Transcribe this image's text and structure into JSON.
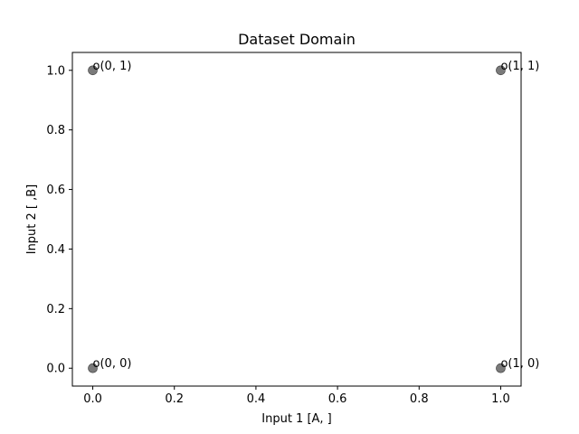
{
  "chart_data": {
    "type": "scatter",
    "title": "Dataset Domain",
    "xlabel": "Input 1 [A, ]",
    "ylabel": "Input 2 [ ,B]",
    "xlim": [
      -0.05,
      1.05
    ],
    "ylim": [
      -0.06,
      1.06
    ],
    "xticks": [
      0.0,
      0.2,
      0.4,
      0.6,
      0.8,
      1.0
    ],
    "xtick_labels": [
      "0.0",
      "0.2",
      "0.4",
      "0.6",
      "0.8",
      "1.0"
    ],
    "yticks": [
      0.0,
      0.2,
      0.4,
      0.6,
      0.8,
      1.0
    ],
    "ytick_labels": [
      "0.0",
      "0.2",
      "0.4",
      "0.6",
      "0.8",
      "1.0"
    ],
    "grid": false,
    "marker_color": "#6b6b6b",
    "points": [
      {
        "x": 0,
        "y": 0,
        "label": "o(0, 0)"
      },
      {
        "x": 0,
        "y": 1,
        "label": "o(0, 1)"
      },
      {
        "x": 1,
        "y": 0,
        "label": "o(1, 0)"
      },
      {
        "x": 1,
        "y": 1,
        "label": "o(1, 1)"
      }
    ]
  }
}
